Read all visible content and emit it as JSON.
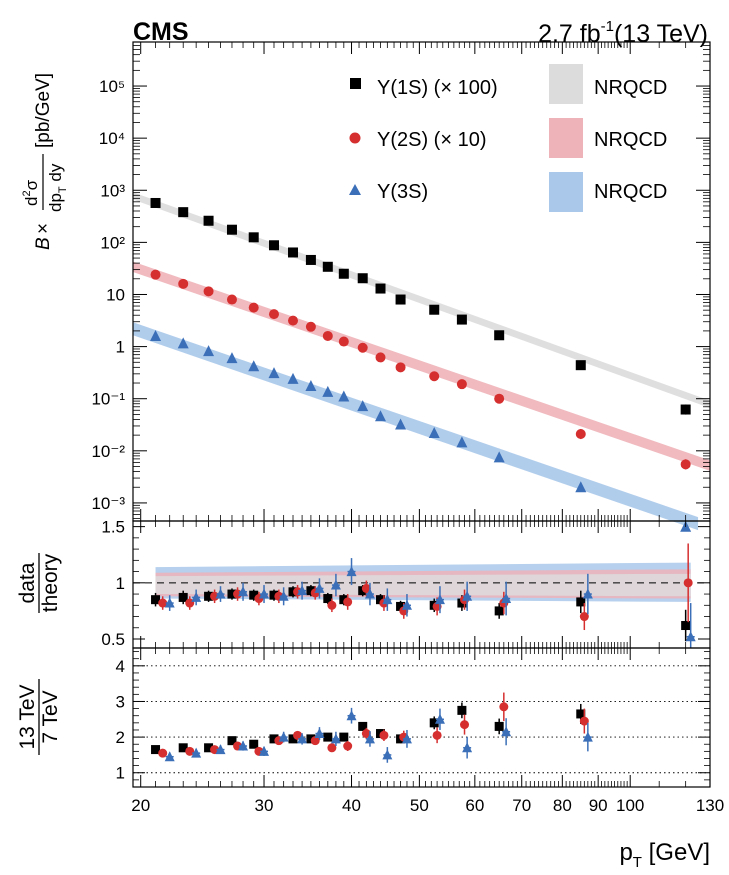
{
  "header": {
    "experiment": "CMS",
    "luminosity": "2.7 fb",
    "lumi_exp": "-1",
    "energy": "(13 TeV)"
  },
  "legend": {
    "items": [
      {
        "label": "Υ(1S) (× 100)",
        "marker": "square",
        "color": "#000000"
      },
      {
        "label": "Υ(2S) (× 10)",
        "marker": "circle",
        "color": "#d62f2f"
      },
      {
        "label": "Υ(3S)",
        "marker": "triangle",
        "color": "#3b6fb8"
      }
    ],
    "bands": [
      {
        "label": "NRQCD",
        "color": "#dcdcdc"
      },
      {
        "label": "NRQCD",
        "color": "#eeb3b8"
      },
      {
        "label": "NRQCD",
        "color": "#a9c8ea"
      }
    ]
  },
  "colors": {
    "s1": "#000000",
    "s2": "#d62f2f",
    "s3": "#3b6fb8",
    "band1": "#dcdcdc",
    "band2": "#eeb3b8",
    "band3": "#a9c8ea"
  },
  "chart_data": [
    {
      "type": "scatter",
      "panel": "cross-section",
      "ylabel_parts": {
        "b": "B",
        "times": "×",
        "d2sigma": "d",
        "sq": "2",
        "sigma": "σ",
        "dpt": "dp",
        "t": "T",
        "dy": " dy",
        "unit": "[pb/GeV]"
      },
      "xscale": "log",
      "yscale": "log",
      "xlim": [
        19.5,
        130
      ],
      "ylim": [
        0.00045,
        700000
      ],
      "ytick_labels": [
        "10⁻³",
        "10⁻²",
        "10⁻¹",
        "1",
        "10",
        "10²",
        "10³",
        "10⁴",
        "10⁵"
      ],
      "ytick_values": [
        0.001,
        0.01,
        0.1,
        1,
        10,
        100,
        1000,
        10000,
        100000
      ],
      "series": [
        {
          "name": "Υ(1S) (× 100)",
          "marker": "square",
          "x": [
            21,
            23,
            25,
            27,
            29,
            31,
            33,
            35,
            37,
            39,
            41.5,
            44,
            47,
            52.5,
            57.5,
            65,
            85,
            120
          ],
          "y": [
            570,
            380,
            260,
            175,
            125,
            88,
            64,
            46,
            34,
            25,
            20.5,
            13,
            8,
            5.1,
            3.3,
            1.65,
            0.44,
            0.062
          ]
        },
        {
          "name": "Υ(2S) (× 10)",
          "marker": "circle",
          "x": [
            21,
            23,
            25,
            27,
            29,
            31,
            33,
            35,
            37,
            39,
            41.5,
            44,
            47,
            52.5,
            57.5,
            65,
            85,
            120
          ],
          "y": [
            24,
            16,
            11.5,
            8,
            5.6,
            4.2,
            3.15,
            2.4,
            1.6,
            1.25,
            0.95,
            0.62,
            0.4,
            0.27,
            0.19,
            0.1,
            0.021,
            0.0055
          ]
        },
        {
          "name": "Υ(3S)",
          "marker": "triangle",
          "x": [
            21,
            23,
            25,
            27,
            29,
            31,
            33,
            35,
            37,
            39,
            41.5,
            44,
            47,
            52.5,
            57.5,
            65,
            85,
            120
          ],
          "y": [
            1.6,
            1.15,
            0.82,
            0.6,
            0.42,
            0.31,
            0.24,
            0.175,
            0.135,
            0.11,
            0.072,
            0.046,
            0.032,
            0.022,
            0.0145,
            0.0075,
            0.002,
            0.00035
          ]
        }
      ],
      "bands": [
        {
          "name": "NRQCD (1S)",
          "x": [
            19.5,
            130
          ],
          "y": [
            780,
            0.078
          ],
          "width_decades": 0.14
        },
        {
          "name": "NRQCD (2S)",
          "x": [
            19.5,
            130
          ],
          "y": [
            34,
            0.0052
          ],
          "width_decades": 0.2
        },
        {
          "name": "NRQCD (3S)",
          "x": [
            19.5,
            125
          ],
          "y": [
            2.2,
            0.0004
          ],
          "width_decades": 0.25
        }
      ]
    },
    {
      "type": "scatter",
      "panel": "data-theory-ratio",
      "ylabel_top": "data",
      "ylabel_bottom": "theory",
      "xscale": "log",
      "xlim": [
        19.5,
        130
      ],
      "ylim": [
        0.42,
        1.55
      ],
      "ytick_labels": [
        "0.5",
        "1",
        "1.5"
      ],
      "ytick_values": [
        0.5,
        1,
        1.5
      ],
      "reference_line": 1,
      "bands": [
        {
          "name": "NRQCD (3S)",
          "low": [
            0.86,
            0.83
          ],
          "high": [
            1.14,
            1.18
          ]
        },
        {
          "name": "NRQCD (2S)",
          "low": [
            0.88,
            0.86
          ],
          "high": [
            1.09,
            1.12
          ]
        },
        {
          "name": "NRQCD (1S)",
          "low": [
            0.9,
            0.88
          ],
          "high": [
            1.06,
            1.08
          ]
        }
      ],
      "series": [
        {
          "name": "Υ(1S)",
          "x": [
            21,
            23,
            25,
            27,
            29,
            31,
            33,
            35,
            37,
            39,
            41.5,
            44,
            47,
            52.5,
            57.5,
            65,
            85,
            120
          ],
          "y": [
            0.85,
            0.87,
            0.88,
            0.9,
            0.89,
            0.89,
            0.92,
            0.93,
            0.86,
            0.85,
            0.93,
            0.85,
            0.79,
            0.8,
            0.82,
            0.75,
            0.83,
            0.62
          ],
          "err": [
            0.06,
            0.06,
            0.05,
            0.05,
            0.05,
            0.05,
            0.05,
            0.05,
            0.05,
            0.05,
            0.05,
            0.05,
            0.05,
            0.06,
            0.07,
            0.07,
            0.1,
            0.14
          ]
        },
        {
          "name": "Υ(2S)",
          "x": [
            21.5,
            23.5,
            25.5,
            27.5,
            29.5,
            31.5,
            33.5,
            35.5,
            37.5,
            39.5,
            42,
            44.5,
            47.5,
            53,
            58,
            66,
            86,
            121
          ],
          "y": [
            0.82,
            0.82,
            0.88,
            0.9,
            0.86,
            0.88,
            0.92,
            0.91,
            0.8,
            0.83,
            0.95,
            0.82,
            0.75,
            0.79,
            0.85,
            0.82,
            0.7,
            1.0
          ],
          "err": [
            0.06,
            0.06,
            0.06,
            0.06,
            0.06,
            0.06,
            0.06,
            0.06,
            0.06,
            0.07,
            0.07,
            0.07,
            0.07,
            0.08,
            0.09,
            0.1,
            0.12,
            0.35
          ]
        },
        {
          "name": "Υ(3S)",
          "x": [
            22,
            24,
            26,
            28,
            30,
            32,
            34,
            36,
            38,
            40,
            42.5,
            45,
            48,
            53.5,
            58.5,
            66.5,
            87,
            122
          ],
          "y": [
            0.82,
            0.87,
            0.9,
            0.92,
            0.9,
            0.88,
            0.93,
            0.95,
            0.98,
            1.1,
            0.9,
            0.85,
            0.8,
            0.85,
            0.88,
            0.86,
            0.9,
            0.52
          ],
          "err": [
            0.07,
            0.07,
            0.07,
            0.08,
            0.08,
            0.08,
            0.08,
            0.09,
            0.1,
            0.12,
            0.1,
            0.1,
            0.1,
            0.12,
            0.13,
            0.15,
            0.18,
            0.3
          ]
        }
      ]
    },
    {
      "type": "scatter",
      "panel": "energy-ratio",
      "ylabel_top": "13 TeV",
      "ylabel_bottom": "7 TeV",
      "xscale": "log",
      "xlim": [
        19.5,
        130
      ],
      "ylim": [
        0.6,
        4.5
      ],
      "ytick_labels": [
        "1",
        "2",
        "3",
        "4"
      ],
      "ytick_values": [
        1,
        2,
        3,
        4
      ],
      "xlabel_main": "p",
      "xlabel_sub": "T",
      "xlabel_unit": " [GeV]",
      "xtick_labels": [
        "20",
        "30",
        "40",
        "50",
        "60",
        "70",
        "80",
        "90",
        "100",
        "130"
      ],
      "xtick_values": [
        20,
        30,
        40,
        50,
        60,
        70,
        80,
        90,
        100,
        130
      ],
      "series": [
        {
          "name": "Υ(1S)",
          "x": [
            21,
            23,
            25,
            27,
            29,
            31,
            33,
            35,
            37,
            39,
            41.5,
            44,
            47,
            52.5,
            57.5,
            65,
            85
          ],
          "y": [
            1.65,
            1.7,
            1.7,
            1.9,
            1.8,
            1.95,
            1.95,
            1.95,
            2.0,
            2.0,
            2.3,
            2.1,
            1.95,
            2.4,
            2.75,
            2.3,
            2.65
          ],
          "err": [
            0.08,
            0.08,
            0.08,
            0.08,
            0.08,
            0.08,
            0.08,
            0.08,
            0.1,
            0.1,
            0.12,
            0.12,
            0.12,
            0.18,
            0.22,
            0.22,
            0.28
          ]
        },
        {
          "name": "Υ(2S)",
          "x": [
            21.5,
            23.5,
            25.5,
            27.5,
            29.5,
            31.5,
            33.5,
            35.5,
            37.5,
            39.5,
            42,
            44.5,
            47.5,
            53,
            58,
            66,
            86
          ],
          "y": [
            1.55,
            1.6,
            1.65,
            1.75,
            1.6,
            1.9,
            2.05,
            1.9,
            1.7,
            1.75,
            2.1,
            2.05,
            2.0,
            2.05,
            2.35,
            2.85,
            2.45
          ],
          "err": [
            0.1,
            0.1,
            0.1,
            0.1,
            0.1,
            0.12,
            0.12,
            0.12,
            0.12,
            0.14,
            0.16,
            0.16,
            0.18,
            0.22,
            0.28,
            0.4,
            0.35
          ]
        },
        {
          "name": "Υ(3S)",
          "x": [
            22,
            24,
            26,
            28,
            30,
            32,
            34,
            36,
            38,
            40,
            42.5,
            45,
            48,
            53.5,
            58.5,
            66.5,
            87
          ],
          "y": [
            1.45,
            1.55,
            1.65,
            1.75,
            1.6,
            2.0,
            1.95,
            2.1,
            1.95,
            2.6,
            1.95,
            1.5,
            1.95,
            2.5,
            1.7,
            2.15,
            2.0
          ],
          "err": [
            0.12,
            0.12,
            0.12,
            0.13,
            0.13,
            0.15,
            0.16,
            0.18,
            0.2,
            0.22,
            0.22,
            0.22,
            0.25,
            0.3,
            0.3,
            0.38,
            0.4
          ]
        }
      ]
    }
  ]
}
